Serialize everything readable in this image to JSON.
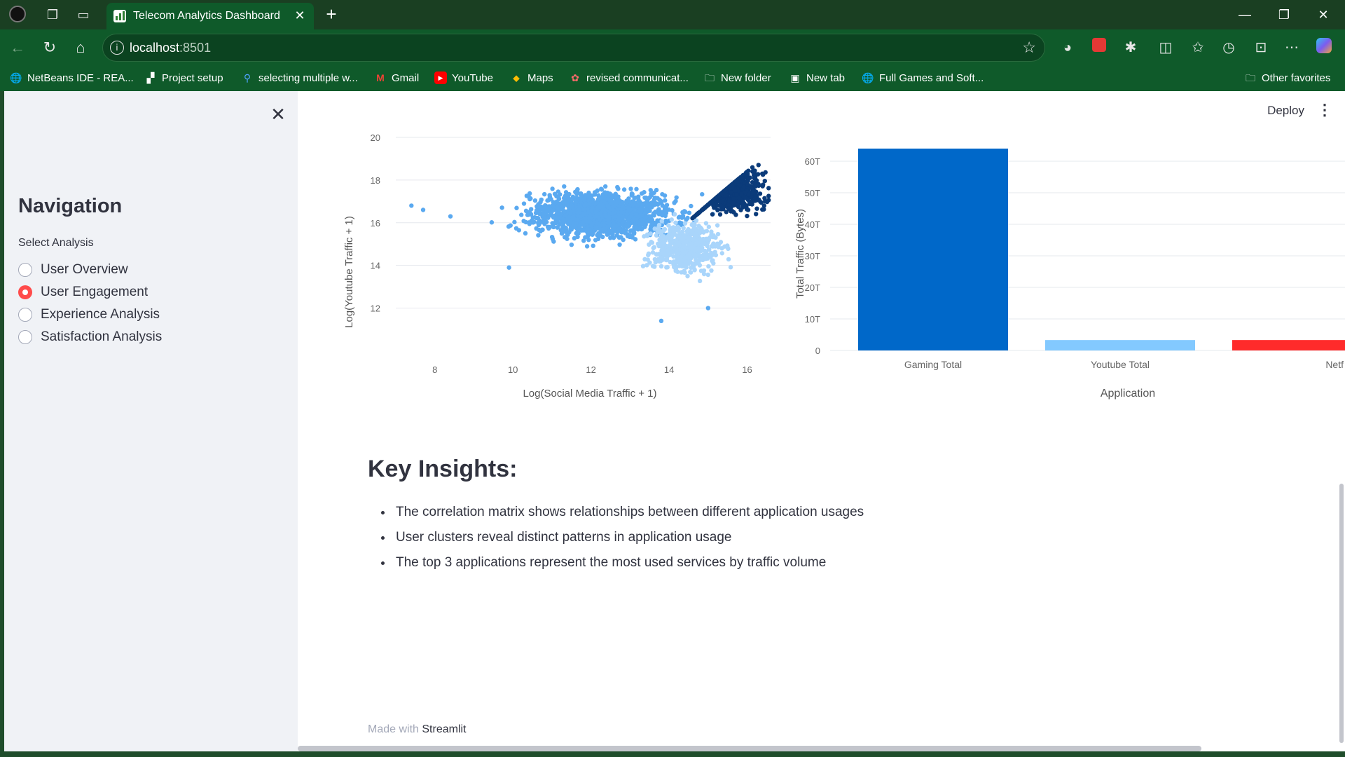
{
  "browser": {
    "tab_title": "Telecom Analytics Dashboard",
    "url_host": "localhost",
    "url_port": ":8501",
    "bookmarks": [
      {
        "label": "NetBeans IDE - REA...",
        "icon": "globe-icon"
      },
      {
        "label": "Project setup",
        "icon": "project-icon"
      },
      {
        "label": "selecting multiple w...",
        "icon": "search-icon"
      },
      {
        "label": "Gmail",
        "icon": "gmail-icon"
      },
      {
        "label": "YouTube",
        "icon": "youtube-icon"
      },
      {
        "label": "Maps",
        "icon": "maps-icon"
      },
      {
        "label": "revised communicat...",
        "icon": "doc-icon"
      },
      {
        "label": "New folder",
        "icon": "folder-icon"
      },
      {
        "label": "New tab",
        "icon": "newtab-icon"
      },
      {
        "label": "Full Games and Soft...",
        "icon": "globe-icon"
      }
    ],
    "other_favorites": "Other favorites"
  },
  "sidebar": {
    "title": "Navigation",
    "select_label": "Select Analysis",
    "options": [
      {
        "label": "User Overview",
        "selected": false
      },
      {
        "label": "User Engagement",
        "selected": true
      },
      {
        "label": "Experience Analysis",
        "selected": false
      },
      {
        "label": "Satisfaction Analysis",
        "selected": false
      }
    ]
  },
  "header": {
    "deploy_label": "Deploy"
  },
  "chart_data": [
    {
      "type": "scatter",
      "xlabel": "Log(Social Media Traffic + 1)",
      "ylabel": "Log(Youtube Traffic + 1)",
      "xlim": [
        7,
        16.6
      ],
      "ylim": [
        11,
        20
      ],
      "x_ticks": [
        8,
        10,
        12,
        14,
        16
      ],
      "y_ticks": [
        12,
        14,
        16,
        18,
        20
      ],
      "clusters": [
        {
          "color": "#5aa9f0",
          "center": [
            12.3,
            16.4
          ],
          "spread": [
            1.6,
            0.9
          ]
        },
        {
          "color": "#a9d5fb",
          "center": [
            14.4,
            14.9
          ],
          "spread": [
            0.8,
            1.0
          ]
        },
        {
          "color": "#0b3b7a",
          "center": [
            15.6,
            17.6
          ],
          "spread": [
            0.7,
            0.9
          ]
        }
      ],
      "outliers": [
        [
          7.4,
          16.8
        ],
        [
          7.7,
          16.6
        ],
        [
          8.4,
          16.3
        ],
        [
          9.9,
          13.9
        ],
        [
          13.8,
          11.4
        ],
        [
          15.0,
          12.0
        ]
      ]
    },
    {
      "type": "bar",
      "categories": [
        "Gaming Total",
        "Youtube Total",
        "Netf"
      ],
      "values": [
        64,
        3.3,
        3.3
      ],
      "colors": [
        "#0068c9",
        "#83c9ff",
        "#ff2b2b"
      ],
      "xlabel": "Application",
      "ylabel": "Total Traffic (Bytes)",
      "ylim": [
        0,
        64
      ],
      "y_ticks": [
        "0",
        "10T",
        "20T",
        "30T",
        "40T",
        "50T",
        "60T"
      ]
    }
  ],
  "insights": {
    "title": "Key Insights:",
    "items": [
      "The correlation matrix shows relationships between different application usages",
      "User clusters reveal distinct patterns in application usage",
      "The top 3 applications represent the most used services by traffic volume"
    ]
  },
  "footer": {
    "prefix": "Made with ",
    "brand": "Streamlit"
  }
}
